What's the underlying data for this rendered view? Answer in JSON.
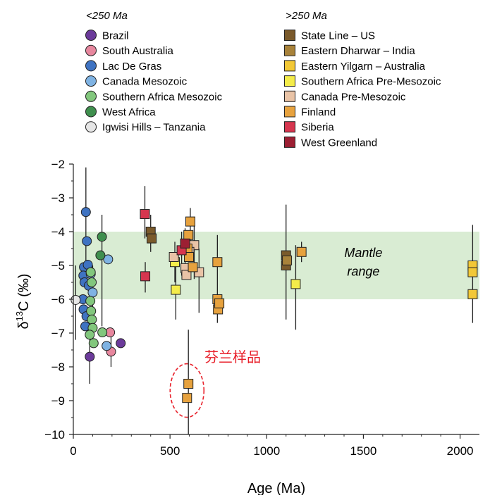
{
  "chart_data": {
    "type": "scatter",
    "xlabel": "Age (Ma)",
    "ylabel_main": "δ",
    "ylabel_sup": "13",
    "ylabel_rest": "C (‰)",
    "xlim": [
      0,
      2100
    ],
    "ylim": [
      -10,
      -2
    ],
    "x_ticks": [
      "0",
      "500",
      "1000",
      "1500",
      "2000"
    ],
    "x_tick_values": [
      0,
      500,
      1000,
      1500,
      2000
    ],
    "y_ticks": [
      "−2",
      "−3",
      "−4",
      "−5",
      "−6",
      "−7",
      "−8",
      "−9",
      "−10"
    ],
    "y_tick_values": [
      -2,
      -3,
      -4,
      -5,
      -6,
      -7,
      -8,
      -9,
      -10
    ],
    "grid": false,
    "mantle_range": {
      "y": [
        -6,
        -4
      ],
      "label_line1": "Mantle",
      "label_line2": "range",
      "color": "#d9ecd3"
    },
    "annotation": {
      "text": "芬兰样品",
      "color": "#e8202a",
      "ellipse_center": [
        588,
        -8.7
      ]
    },
    "legend": {
      "placement": "top",
      "young_title": "<250 Ma",
      "old_title": ">250 Ma",
      "young": [
        {
          "name": "Brazil",
          "color": "#6b3a9a"
        },
        {
          "name": "South Australia",
          "color": "#e7879e"
        },
        {
          "name": "Lac De Gras",
          "color": "#3f73c2"
        },
        {
          "name": "Canada Mesozoic",
          "color": "#7fb3e3"
        },
        {
          "name": "Southern Africa Mesozoic",
          "color": "#82c77d"
        },
        {
          "name": "West Africa",
          "color": "#3f8f4e"
        },
        {
          "name": "Igwisi Hills – Tanzania",
          "color": "#e6e6e6"
        }
      ],
      "old": [
        {
          "name": "State Line – US",
          "color": "#7a5a2b"
        },
        {
          "name": "Eastern Dharwar – India",
          "color": "#a8823a"
        },
        {
          "name": "Eastern Yilgarn – Australia",
          "color": "#f2c836"
        },
        {
          "name": "Southern Africa Pre-Mesozoic",
          "color": "#f4ec4a"
        },
        {
          "name": "Canada Pre-Mesozoic",
          "color": "#e9c3a6"
        },
        {
          "name": "Finland",
          "color": "#e7a23e"
        },
        {
          "name": "Siberia",
          "color": "#d6364f"
        },
        {
          "name": "West Greenland",
          "color": "#9c1f33"
        }
      ]
    },
    "series": [
      {
        "name": "Brazil",
        "marker": "circle",
        "color": "#6b3a9a",
        "points": [
          {
            "x": 85,
            "y": -7.7,
            "lo": -8.5,
            "hi": -7.0
          },
          {
            "x": 245,
            "y": -7.3
          }
        ]
      },
      {
        "name": "South Australia",
        "marker": "circle",
        "color": "#e7879e",
        "points": [
          {
            "x": 190,
            "y": -6.98
          },
          {
            "x": 195,
            "y": -7.55,
            "lo": -8.0,
            "hi": -7.1
          }
        ]
      },
      {
        "name": "Lac De Gras",
        "marker": "circle",
        "color": "#3f73c2",
        "points": [
          {
            "x": 65,
            "y": -3.42,
            "lo": -5.0,
            "hi": -2.1
          },
          {
            "x": 70,
            "y": -4.28
          },
          {
            "x": 55,
            "y": -5.05
          },
          {
            "x": 52,
            "y": -5.3
          },
          {
            "x": 58,
            "y": -5.5
          },
          {
            "x": 50,
            "y": -6.0
          },
          {
            "x": 53,
            "y": -6.3
          },
          {
            "x": 68,
            "y": -6.5
          },
          {
            "x": 62,
            "y": -6.8
          },
          {
            "x": 75,
            "y": -4.98
          },
          {
            "x": 80,
            "y": -5.6
          }
        ]
      },
      {
        "name": "Canada Mesozoic",
        "marker": "circle",
        "color": "#7fb3e3",
        "points": [
          {
            "x": 100,
            "y": -5.8,
            "lo": -6.8,
            "hi": -5.0
          },
          {
            "x": 180,
            "y": -4.82
          },
          {
            "x": 172,
            "y": -7.38
          },
          {
            "x": 90,
            "y": -5.25
          }
        ]
      },
      {
        "name": "Southern Africa Mesozoic",
        "marker": "circle",
        "color": "#82c77d",
        "points": [
          {
            "x": 90,
            "y": -5.2
          },
          {
            "x": 95,
            "y": -5.5
          },
          {
            "x": 88,
            "y": -6.05
          },
          {
            "x": 92,
            "y": -6.35
          },
          {
            "x": 96,
            "y": -6.6
          },
          {
            "x": 100,
            "y": -6.85
          },
          {
            "x": 105,
            "y": -7.3
          },
          {
            "x": 150,
            "y": -6.98
          },
          {
            "x": 85,
            "y": -7.05
          }
        ]
      },
      {
        "name": "West Africa",
        "marker": "circle",
        "color": "#3f8f4e",
        "points": [
          {
            "x": 148,
            "y": -4.15,
            "lo": -6.8,
            "hi": -3.5
          },
          {
            "x": 140,
            "y": -4.7
          }
        ]
      },
      {
        "name": "Igwisi Hills – Tanzania",
        "marker": "circle",
        "color": "#e6e6e6",
        "points": [
          {
            "x": 12,
            "y": -6.02,
            "lo": -7.2,
            "hi": -5.0
          }
        ]
      },
      {
        "name": "State Line – US",
        "marker": "square",
        "color": "#7a5a2b",
        "points": [
          {
            "x": 400,
            "y": -4.0,
            "lo": -4.6,
            "hi": -3.5
          },
          {
            "x": 405,
            "y": -4.2
          },
          {
            "x": 1100,
            "y": -4.7,
            "lo": -6.6,
            "hi": -3.2
          },
          {
            "x": 1100,
            "y": -5.0
          }
        ]
      },
      {
        "name": "Eastern Dharwar – India",
        "marker": "square",
        "color": "#a8823a",
        "points": [
          {
            "x": 1105,
            "y": -4.85
          }
        ]
      },
      {
        "name": "Eastern Yilgarn – Australia",
        "marker": "square",
        "color": "#f2c836",
        "points": [
          {
            "x": 2065,
            "y": -5.0,
            "lo": -6.7,
            "hi": -3.8
          },
          {
            "x": 2065,
            "y": -5.2
          },
          {
            "x": 2065,
            "y": -5.85
          }
        ]
      },
      {
        "name": "Southern Africa Pre-Mesozoic",
        "marker": "square",
        "color": "#f4ec4a",
        "points": [
          {
            "x": 525,
            "y": -4.9,
            "lo": -5.5,
            "hi": -4.3
          },
          {
            "x": 530,
            "y": -5.72,
            "lo": -6.6,
            "hi": -5.0
          },
          {
            "x": 1150,
            "y": -5.55,
            "lo": -6.9,
            "hi": -4.4
          }
        ]
      },
      {
        "name": "Canada Pre-Mesozoic",
        "marker": "square",
        "color": "#e9c3a6",
        "points": [
          {
            "x": 520,
            "y": -4.75
          },
          {
            "x": 580,
            "y": -5.08
          },
          {
            "x": 585,
            "y": -5.28
          },
          {
            "x": 625,
            "y": -4.4,
            "lo": -5.4,
            "hi": -3.8
          },
          {
            "x": 650,
            "y": -5.2,
            "lo": -6.4,
            "hi": -4.5
          },
          {
            "x": 600,
            "y": -4.6
          }
        ]
      },
      {
        "name": "Finland",
        "marker": "square",
        "color": "#e7a23e",
        "points": [
          {
            "x": 605,
            "y": -3.7,
            "lo": -4.7,
            "hi": -3.3
          },
          {
            "x": 595,
            "y": -4.1
          },
          {
            "x": 590,
            "y": -4.5
          },
          {
            "x": 598,
            "y": -4.75
          },
          {
            "x": 618,
            "y": -5.05
          },
          {
            "x": 745,
            "y": -4.9,
            "lo": -6.7,
            "hi": -4.1
          },
          {
            "x": 745,
            "y": -6.0
          },
          {
            "x": 748,
            "y": -6.3
          },
          {
            "x": 755,
            "y": -6.12
          },
          {
            "x": 1180,
            "y": -4.6,
            "lo": -4.9,
            "hi": -4.3
          },
          {
            "x": 595,
            "y": -8.5,
            "lo": -10.0,
            "hi": -6.9
          },
          {
            "x": 588,
            "y": -8.92
          }
        ]
      },
      {
        "name": "Siberia",
        "marker": "square",
        "color": "#d6364f",
        "points": [
          {
            "x": 370,
            "y": -3.48,
            "lo": -4.2,
            "hi": -2.65
          },
          {
            "x": 372,
            "y": -5.32,
            "lo": -5.8,
            "hi": -4.9
          },
          {
            "x": 560,
            "y": -4.55,
            "lo": -5.3,
            "hi": -4.0
          }
        ]
      },
      {
        "name": "West Greenland",
        "marker": "square",
        "color": "#9c1f33",
        "points": [
          {
            "x": 578,
            "y": -4.35,
            "lo": -5.0,
            "hi": -3.9
          }
        ]
      }
    ]
  }
}
